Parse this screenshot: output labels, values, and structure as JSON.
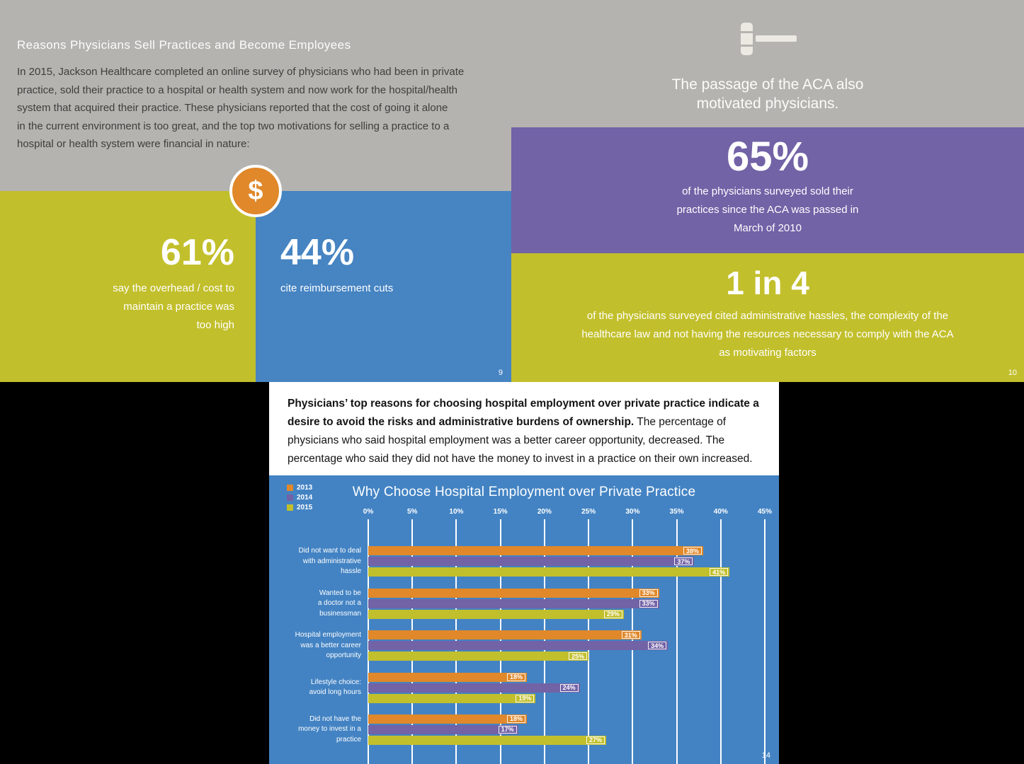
{
  "colors": {
    "background": "#000000",
    "gray": "#b4b3b0",
    "yellow_green": "#c2bf2c",
    "blue": "#4684c2",
    "purple": "#7262a6",
    "orange": "#e0882a",
    "chart_blue": "#4383c3"
  },
  "page9": {
    "title": "Reasons Physicians Sell Practices and Become Employees",
    "body_lines": [
      "In 2015, Jackson Healthcare completed an online survey of physicians who had been in private",
      "practice, sold their practice to a hospital or health system and now work for the hospital/health",
      "system that acquired their practice. These physicians reported that the cost of going it alone",
      "in the current environment is too great, and the top two motivations for selling a practice to a",
      "hospital or health system were financial in nature:"
    ],
    "dollar_symbol": "$",
    "stat_left": {
      "value": "61%",
      "caption_lines": [
        "say the overhead / cost to",
        "maintain a practice was",
        "too high"
      ]
    },
    "stat_right": {
      "value": "44%",
      "caption": "cite reimbursement cuts"
    },
    "page_number": "9"
  },
  "page10": {
    "heading_lines": [
      "The passage of the ACA also",
      "motivated physicians."
    ],
    "stat_top": {
      "value": "65%",
      "caption_lines": [
        "of the physicians surveyed sold their",
        "practices since the ACA was passed in",
        "March of 2010"
      ]
    },
    "stat_bottom": {
      "value": "1 in 4",
      "caption_lines": [
        "of the physicians surveyed cited administrative hassles, the complexity of the",
        "healthcare law and not having the resources necessary to comply with the ACA",
        "as motivating factors"
      ]
    },
    "page_number": "10"
  },
  "page14": {
    "intro_bold": "Physicians’ top reasons for choosing hospital employment over private practice indicate a desire to avoid the risks and administrative burdens of ownership.",
    "intro_rest": "The percentage of physicians who said hospital employment was a better career opportunity, decreased. The percentage who said they did not have the money to invest in a practice on their own increased.",
    "page_number": "14"
  },
  "chart_data": {
    "type": "bar",
    "orientation": "horizontal",
    "title": "Why Choose Hospital Employment over Private Practice",
    "categories": [
      [
        "Did not want to deal",
        "with administrative",
        "hassle"
      ],
      [
        "Wanted to be",
        "a doctor not a",
        "businessman"
      ],
      [
        "Hospital employment",
        "was a better career",
        "opportunity"
      ],
      [
        "Lifestyle choice:",
        "avoid long hours"
      ],
      [
        "Did not have the",
        "money to invest in a",
        "practice"
      ]
    ],
    "series": [
      {
        "name": "2013",
        "color": "#e0882a",
        "values": [
          38,
          33,
          31,
          18,
          18
        ]
      },
      {
        "name": "2014",
        "color": "#7262a6",
        "values": [
          37,
          33,
          34,
          24,
          17
        ]
      },
      {
        "name": "2015",
        "color": "#c2bf2c",
        "values": [
          41,
          29,
          25,
          19,
          27
        ]
      }
    ],
    "x_ticks": [
      "0%",
      "5%",
      "10%",
      "15%",
      "20%",
      "25%",
      "30%",
      "35%",
      "40%",
      "45%"
    ],
    "xlim": [
      0,
      45
    ],
    "value_suffix": "%",
    "legend_position": "top-left",
    "grid": "vertical-white"
  }
}
